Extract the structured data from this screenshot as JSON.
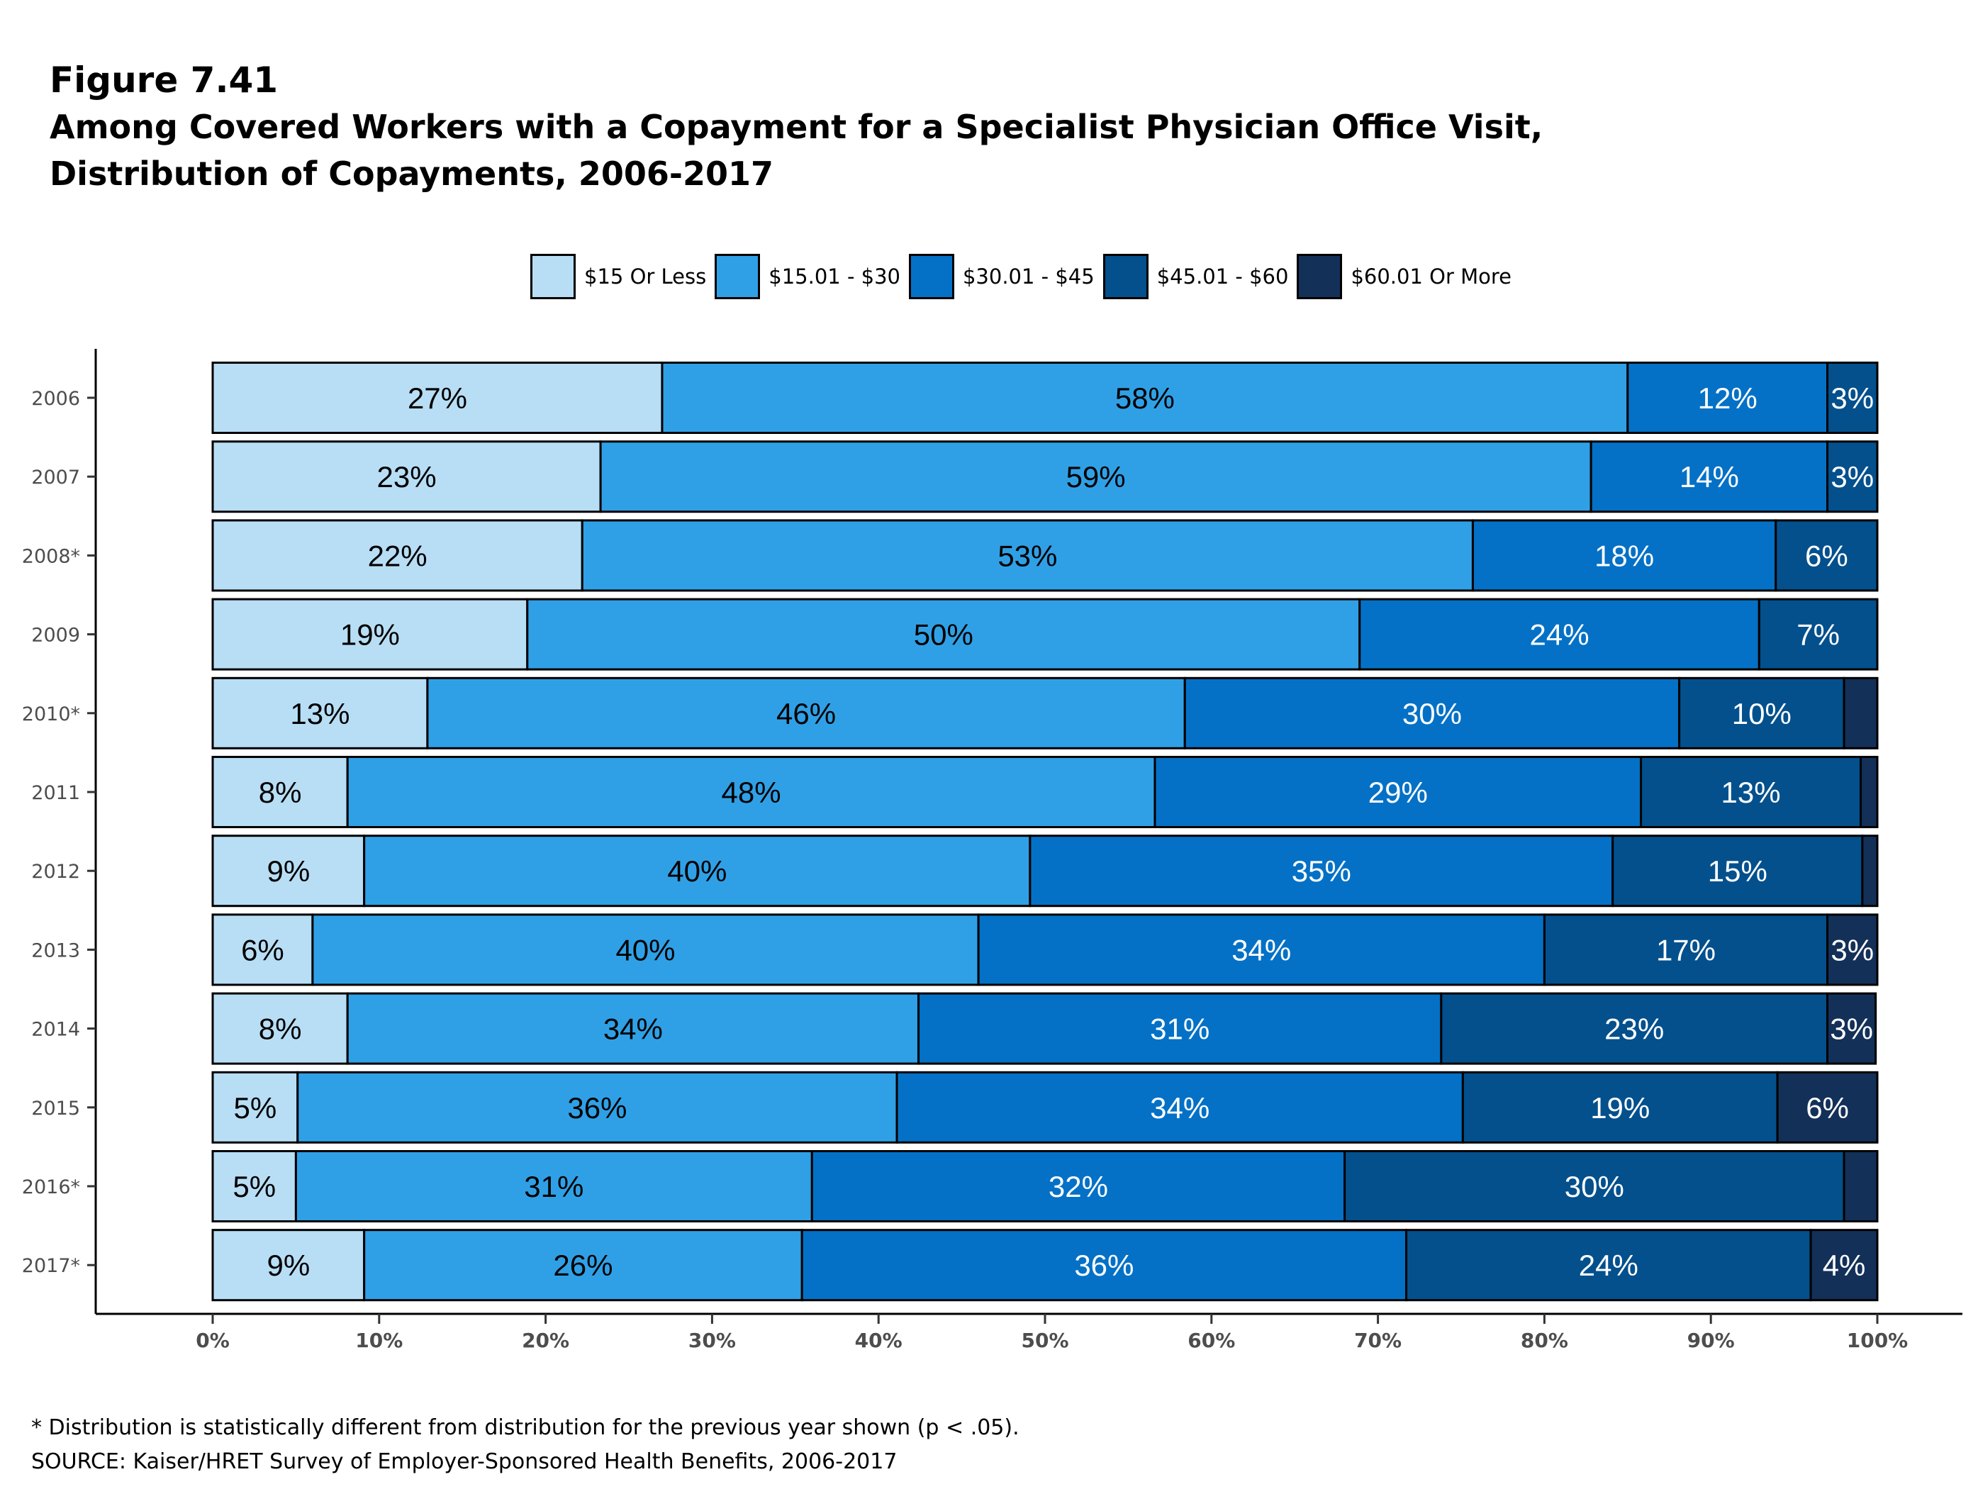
{
  "header": {
    "figure_label": "Figure 7.41",
    "title_line1": "Among Covered Workers with a Copayment for a Specialist Physician Office Visit,",
    "title_line2": "Distribution of Copayments, 2006-2017"
  },
  "footer": {
    "note": "* Distribution is statistically different from distribution for the previous year shown (p < .05).",
    "source": "SOURCE: Kaiser/HRET Survey of Employer-Sponsored Health Benefits, 2006-2017"
  },
  "colors": {
    "background": "#ffffff",
    "bar_outline": "#000000",
    "axis_text": "#4d4d4d",
    "label_dark": "#000000",
    "label_light": "#ffffff"
  },
  "chart_data": {
    "type": "bar",
    "orientation": "horizontal",
    "stacked": true,
    "categories": [
      "2006",
      "2007",
      "2008*",
      "2009",
      "2010*",
      "2011",
      "2012",
      "2013",
      "2014",
      "2015",
      "2016*",
      "2017*"
    ],
    "xlim": [
      0,
      100
    ],
    "x_ticks": [
      "0%",
      "10%",
      "20%",
      "30%",
      "40%",
      "50%",
      "60%",
      "70%",
      "80%",
      "90%",
      "100%"
    ],
    "legend_position": "top",
    "grid": false,
    "series": [
      {
        "name": "$15 Or Less",
        "color": "#b8def5",
        "label_color": "#000000",
        "values": [
          27,
          23.3,
          22.2,
          18.9,
          12.9,
          8.1,
          9.1,
          6,
          8.1,
          5.1,
          5,
          9.1
        ],
        "labels": [
          "27%",
          "23%",
          "22%",
          "19%",
          "13%",
          "8%",
          "9%",
          "6%",
          "8%",
          "5%",
          "5%",
          "9%"
        ]
      },
      {
        "name": "$15.01 - $30",
        "color": "#30a0e6",
        "label_color": "#000000",
        "values": [
          58,
          59.5,
          53.5,
          50,
          45.5,
          48.5,
          40,
          40,
          34.3,
          36,
          31,
          26.3
        ],
        "labels": [
          "58%",
          "59%",
          "53%",
          "50%",
          "46%",
          "48%",
          "40%",
          "40%",
          "34%",
          "36%",
          "31%",
          "26%"
        ]
      },
      {
        "name": "$30.01 - $45",
        "color": "#0471c6",
        "label_color": "#ffffff",
        "values": [
          12,
          14.2,
          18.2,
          24,
          29.7,
          29.2,
          35,
          34,
          31.4,
          34,
          32,
          36.3
        ],
        "labels": [
          "12%",
          "14%",
          "18%",
          "24%",
          "30%",
          "29%",
          "35%",
          "34%",
          "31%",
          "34%",
          "32%",
          "36%"
        ]
      },
      {
        "name": "$45.01 - $60",
        "color": "#03508d",
        "label_color": "#ffffff",
        "values": [
          3,
          3,
          6.1,
          7.1,
          9.9,
          13.2,
          15,
          17,
          23.2,
          18.9,
          30,
          24.3
        ],
        "labels": [
          "3%",
          "3%",
          "6%",
          "7%",
          "10%",
          "13%",
          "15%",
          "17%",
          "23%",
          "19%",
          "30%",
          "24%"
        ]
      },
      {
        "name": "$60.01 Or More",
        "color": "#133058",
        "label_color": "#ffffff",
        "values": [
          0,
          0,
          0,
          0,
          2,
          1,
          0.9,
          3,
          2.9,
          6,
          2,
          4
        ],
        "labels": [
          "",
          "",
          "",
          "",
          "",
          "",
          "",
          "3%",
          "3%",
          "6%",
          "",
          "4%"
        ]
      }
    ]
  }
}
